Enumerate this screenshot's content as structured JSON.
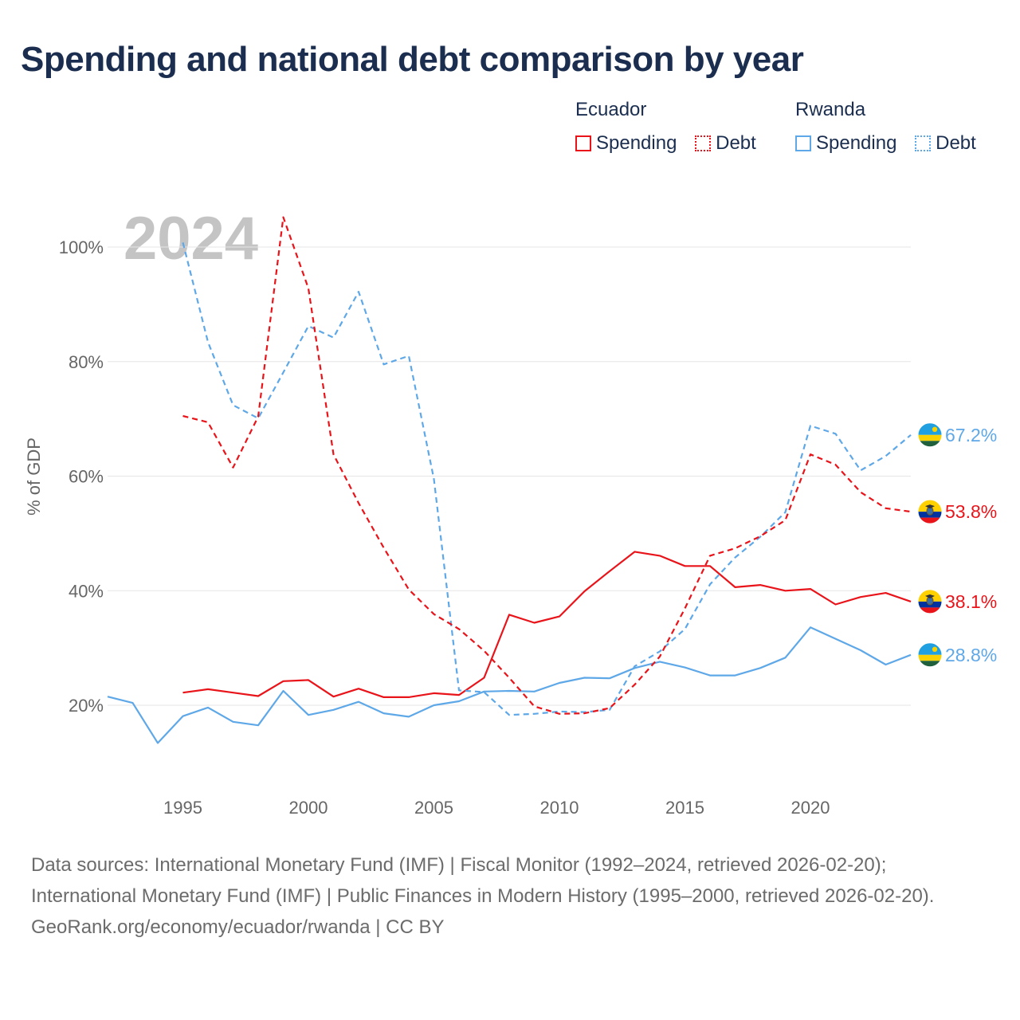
{
  "title": "Spending and national debt comparison by year",
  "legend": {
    "groups": [
      {
        "name": "Ecuador",
        "color": "#e8141a",
        "items": [
          "Spending",
          "Debt"
        ]
      },
      {
        "name": "Rwanda",
        "color": "#5fa8e8",
        "items": [
          "Spending",
          "Debt"
        ]
      }
    ]
  },
  "year_watermark": "2024",
  "footer": {
    "sources": "Data sources: International Monetary Fund (IMF) | Fiscal Monitor (1992–2024, retrieved 2026-02-20); International Monetary Fund (IMF) | Public Finances in Modern History (1995–2000, retrieved 2026-02-20).",
    "credit": "GeoRank.org/economy/ecuador/rwanda | CC BY"
  },
  "chart_data": {
    "type": "line",
    "title": "Spending and national debt comparison by year",
    "xlabel": "",
    "ylabel": "% of GDP",
    "xlim": [
      1992,
      2024
    ],
    "ylim": [
      5,
      108
    ],
    "x_ticks": [
      1995,
      2000,
      2005,
      2010,
      2015,
      2020
    ],
    "y_ticks": [
      20,
      40,
      60,
      80,
      100
    ],
    "y_tick_labels": [
      "20%",
      "40%",
      "60%",
      "80%",
      "100%"
    ],
    "grid": true,
    "legend_position": "top-right",
    "series": [
      {
        "name": "Ecuador Spending",
        "country": "Ecuador",
        "measure": "Spending",
        "color": "#e8141a",
        "dashed": false,
        "end_label": "38.1%",
        "x": [
          1995,
          1996,
          1997,
          1998,
          1999,
          2000,
          2001,
          2002,
          2003,
          2004,
          2005,
          2006,
          2007,
          2008,
          2009,
          2010,
          2011,
          2012,
          2013,
          2014,
          2015,
          2016,
          2017,
          2018,
          2019,
          2020,
          2021,
          2022,
          2023,
          2024
        ],
        "values": [
          22.2,
          22.8,
          22.2,
          21.6,
          24.2,
          24.4,
          21.5,
          22.9,
          21.4,
          21.4,
          22.1,
          21.8,
          24.8,
          35.8,
          34.4,
          35.5,
          39.9,
          43.4,
          46.8,
          46.1,
          44.3,
          44.3,
          40.6,
          41.0,
          40.0,
          40.3,
          37.6,
          38.9,
          39.6,
          38.1
        ]
      },
      {
        "name": "Ecuador Debt",
        "country": "Ecuador",
        "measure": "Debt",
        "color": "#e8141a",
        "dashed": true,
        "end_label": "53.8%",
        "x": [
          1995,
          1996,
          1997,
          1998,
          1999,
          2000,
          2001,
          2002,
          2003,
          2004,
          2005,
          2006,
          2007,
          2008,
          2009,
          2010,
          2011,
          2012,
          2013,
          2014,
          2015,
          2016,
          2017,
          2018,
          2019,
          2020,
          2021,
          2022,
          2023,
          2024
        ],
        "values": [
          70.5,
          69.4,
          61.5,
          70.4,
          105.2,
          92.8,
          63.8,
          55.3,
          47.5,
          40.2,
          35.9,
          33.3,
          29.5,
          24.8,
          19.8,
          18.5,
          18.6,
          19.5,
          23.6,
          28.5,
          36.9,
          46.1,
          47.4,
          49.5,
          52.3,
          63.8,
          62.0,
          57.2,
          54.4,
          53.8
        ]
      },
      {
        "name": "Rwanda Spending",
        "country": "Rwanda",
        "measure": "Spending",
        "color": "#5fa8e8",
        "dashed": false,
        "end_label": "28.8%",
        "x": [
          1992,
          1993,
          1994,
          1995,
          1996,
          1997,
          1998,
          1999,
          2000,
          2001,
          2002,
          2003,
          2004,
          2005,
          2006,
          2007,
          2008,
          2009,
          2010,
          2011,
          2012,
          2013,
          2014,
          2015,
          2016,
          2017,
          2018,
          2019,
          2020,
          2021,
          2022,
          2023,
          2024
        ],
        "values": [
          21.5,
          20.4,
          13.4,
          18.1,
          19.6,
          17.1,
          16.5,
          22.5,
          18.3,
          19.2,
          20.6,
          18.6,
          18.0,
          20.0,
          20.7,
          22.4,
          22.5,
          22.4,
          23.9,
          24.8,
          24.7,
          26.5,
          27.6,
          26.6,
          25.2,
          25.2,
          26.5,
          28.3,
          33.6,
          31.6,
          29.6,
          27.1,
          28.8
        ]
      },
      {
        "name": "Rwanda Debt",
        "country": "Rwanda",
        "measure": "Debt",
        "color": "#5fa8e8",
        "dashed": true,
        "end_label": "67.2%",
        "x": [
          1995,
          1996,
          1997,
          1998,
          1999,
          2000,
          2001,
          2002,
          2003,
          2004,
          2005,
          2006,
          2007,
          2008,
          2009,
          2010,
          2011,
          2012,
          2013,
          2014,
          2015,
          2016,
          2017,
          2018,
          2019,
          2020,
          2021,
          2022,
          2023,
          2024
        ],
        "values": [
          100.8,
          83.4,
          72.4,
          70.1,
          78.1,
          86.2,
          84.2,
          92.2,
          79.5,
          81.0,
          59.5,
          22.6,
          22.3,
          18.3,
          18.5,
          18.9,
          18.8,
          19.2,
          26.8,
          29.4,
          33.3,
          41.1,
          45.8,
          49.4,
          53.7,
          68.8,
          67.4,
          61.0,
          63.5,
          67.2
        ]
      }
    ]
  }
}
